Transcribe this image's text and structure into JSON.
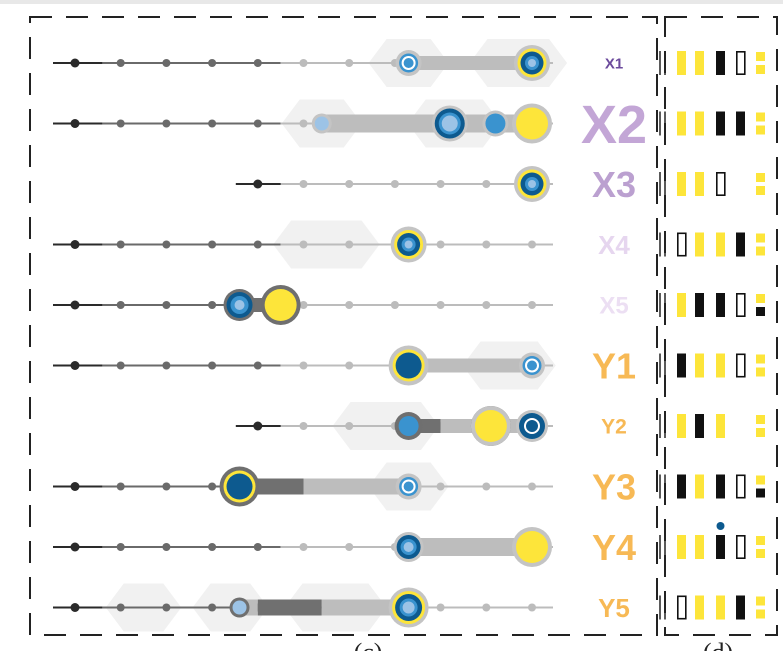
{
  "colors": {
    "yellow": "#fde53a",
    "blue_dark": "#0d5a8f",
    "blue_mid": "#3a93cf",
    "blue_light": "#9cc3e6",
    "gray_ring": "#c4c4c4",
    "gray_dark_ring": "#6f6f6f",
    "track": "#bdbdbd",
    "track_dark": "#707070",
    "tick_dark": "#2a2a2a",
    "tick_mid": "#6a6a6a",
    "tick_light": "#bcbcbc",
    "hexagon": "#f1f1f1",
    "x_label_shades": [
      "#6b4a9c",
      "#c3a6d6",
      "#bba0d0",
      "#e6d6ef",
      "#ecdff3"
    ],
    "y_label_color": "#f7b955",
    "black_block": "#111111",
    "frame": "#222222"
  },
  "rows": [
    {
      "label": "X1",
      "label_size": 15,
      "label_color": "#6b4a9c",
      "start": 0,
      "hexes": [
        {
          "pos": 7.3,
          "w": 1
        },
        {
          "pos": 9.7,
          "w": 1.4
        }
      ],
      "bars": [
        {
          "from": 7.3,
          "to": 10,
          "tone": "light",
          "w": 14
        }
      ],
      "nodes": [
        {
          "pos": 7.3,
          "type": "blue_light_ring",
          "r": 13
        },
        {
          "pos": 10,
          "type": "yellow_blue",
          "r": 18
        }
      ],
      "glyphs": [
        "y",
        "y",
        "k",
        "o",
        "ys"
      ]
    },
    {
      "label": "X2",
      "label_size": 54,
      "label_color": "#c3a6d6",
      "start": 0,
      "hexes": [
        {
          "pos": 5.4,
          "w": 1
        },
        {
          "pos": 8.3,
          "w": 1.3
        }
      ],
      "bars": [
        {
          "from": 5.4,
          "to": 10,
          "tone": "light",
          "w": 18
        }
      ],
      "nodes": [
        {
          "pos": 5.4,
          "type": "light_dot",
          "r": 10
        },
        {
          "pos": 8.2,
          "type": "blue_dark_ring",
          "r": 18
        },
        {
          "pos": 9.2,
          "type": "blue_mid_ring",
          "r": 13
        },
        {
          "pos": 10,
          "type": "yellow_full",
          "r": 20
        }
      ],
      "glyphs": [
        "y",
        "y",
        "k",
        "k",
        "ys"
      ]
    },
    {
      "label": "X3",
      "label_size": 36,
      "label_color": "#bba0d0",
      "start": 4,
      "hexes": [],
      "bars": [],
      "nodes": [
        {
          "pos": 10,
          "type": "yellow_blue",
          "r": 18
        }
      ],
      "glyphs": [
        "y",
        "y",
        "o",
        "_",
        "ys"
      ]
    },
    {
      "label": "X4",
      "label_size": 26,
      "label_color": "#e6d6ef",
      "start": 0,
      "hexes": [
        {
          "pos": 5.5,
          "w": 1.6
        }
      ],
      "bars": [],
      "nodes": [
        {
          "pos": 7.3,
          "type": "yellow_blue",
          "r": 18
        }
      ],
      "glyphs": [
        "o",
        "y",
        "y",
        "k",
        "ys"
      ]
    },
    {
      "label": "X5",
      "label_size": 24,
      "label_color": "#ecdff3",
      "start": 0,
      "hexes": [],
      "bars": [
        {
          "from": 3.6,
          "to": 4.5,
          "tone": "dark",
          "w": 14
        }
      ],
      "nodes": [
        {
          "pos": 3.6,
          "type": "blue_dark_gray_ring",
          "r": 16
        },
        {
          "pos": 4.5,
          "type": "yellow_gray_ring",
          "r": 20
        }
      ],
      "glyphs": [
        "y",
        "k",
        "k",
        "o",
        "yk"
      ]
    },
    {
      "label": "Y1",
      "label_size": 36,
      "label_color": "#f7b955",
      "start": 0,
      "hexes": [
        {
          "pos": 9.5,
          "w": 1.3
        }
      ],
      "bars": [
        {
          "from": 7.3,
          "to": 10,
          "tone": "light",
          "w": 14
        }
      ],
      "nodes": [
        {
          "pos": 7.3,
          "type": "yellow_blue_big",
          "r": 20
        },
        {
          "pos": 10,
          "type": "blue_light_ring",
          "r": 13
        }
      ],
      "glyphs": [
        "k",
        "y",
        "y",
        "o",
        "ys"
      ]
    },
    {
      "label": "Y2",
      "label_size": 21,
      "label_color": "#f7b955",
      "start": 4,
      "hexes": [
        {
          "pos": 6.8,
          "w": 1.6
        }
      ],
      "bars": [
        {
          "from": 7.3,
          "to": 8,
          "tone": "dark",
          "w": 14
        },
        {
          "from": 8,
          "to": 10,
          "tone": "light",
          "w": 14
        }
      ],
      "nodes": [
        {
          "pos": 7.3,
          "type": "blue_mid_darkring",
          "r": 14
        },
        {
          "pos": 9.1,
          "type": "yellow_gray_ring",
          "r": 20
        },
        {
          "pos": 10,
          "type": "blue_dark_light_ring",
          "r": 16
        }
      ],
      "glyphs": [
        "y",
        "k",
        "y",
        "_",
        "ys"
      ]
    },
    {
      "label": "Y3",
      "label_size": 36,
      "label_color": "#f7b955",
      "start": 0,
      "hexes": [
        {
          "pos": 7.3,
          "w": 1
        }
      ],
      "bars": [
        {
          "from": 3.6,
          "to": 5,
          "tone": "dark",
          "w": 16
        },
        {
          "from": 5,
          "to": 7.3,
          "tone": "light",
          "w": 16
        }
      ],
      "nodes": [
        {
          "pos": 3.6,
          "type": "yellow_blue_dark",
          "r": 20
        },
        {
          "pos": 7.3,
          "type": "blue_light_ring",
          "r": 13
        }
      ],
      "glyphs": [
        "k",
        "y",
        "k",
        "o",
        "yk"
      ]
    },
    {
      "label": "Y4",
      "label_size": 36,
      "label_color": "#f7b955",
      "start": 0,
      "hexes": [],
      "bars": [
        {
          "from": 7.3,
          "to": 10,
          "tone": "light",
          "w": 18
        }
      ],
      "nodes": [
        {
          "pos": 7.3,
          "type": "blue_dark_ring",
          "r": 15
        },
        {
          "pos": 10,
          "type": "yellow_full",
          "r": 20
        }
      ],
      "glyphs": [
        "y",
        "y",
        "k_dot",
        "o",
        "ys"
      ]
    },
    {
      "label": "Y5",
      "label_size": 26,
      "label_color": "#f7b955",
      "start": 0,
      "hexes": [
        {
          "pos": 1.5,
          "w": 0.9
        },
        {
          "pos": 3.4,
          "w": 0.9
        },
        {
          "pos": 5.7,
          "w": 1.5
        }
      ],
      "bars": [
        {
          "from": 3.6,
          "to": 4,
          "tone": "light",
          "w": 16
        },
        {
          "from": 4,
          "to": 5.4,
          "tone": "dark",
          "w": 16
        },
        {
          "from": 5.4,
          "to": 7.3,
          "tone": "light",
          "w": 16
        }
      ],
      "nodes": [
        {
          "pos": 3.6,
          "type": "light_dot_dark",
          "r": 10
        },
        {
          "pos": 7.3,
          "type": "yellow_blue",
          "r": 20
        }
      ],
      "glyphs": [
        "o",
        "y",
        "y",
        "k",
        "ys"
      ]
    }
  ],
  "bottom_labels": [
    "(c)",
    "(d)"
  ]
}
